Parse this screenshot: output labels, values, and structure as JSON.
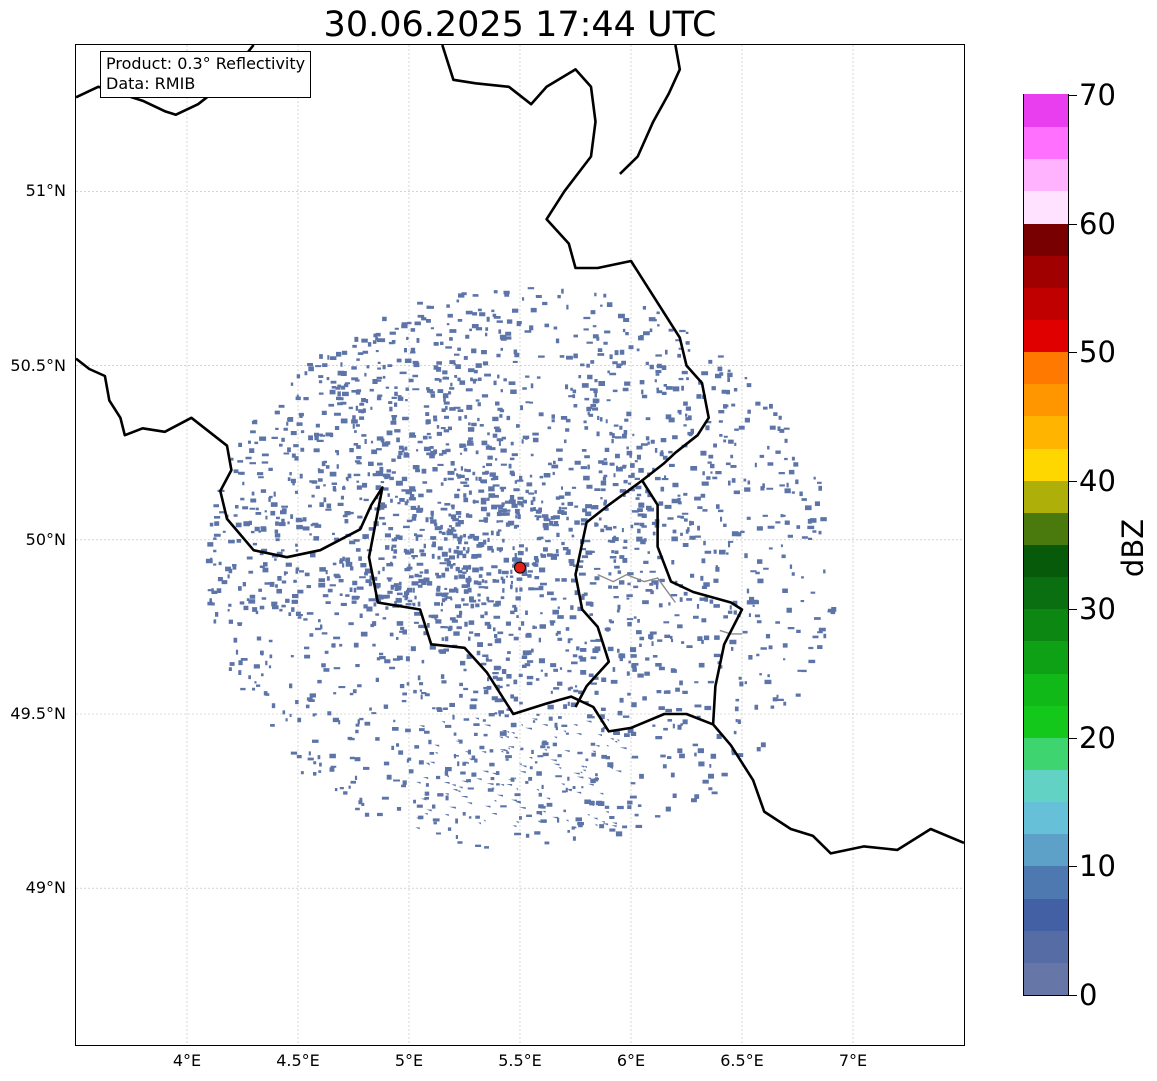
{
  "title": "30.06.2025 17:44 UTC",
  "info_box": {
    "product": "Product: 0.3° Reflectivity",
    "data": "Data: RMIB"
  },
  "map": {
    "lon_range": [
      3.5,
      7.5
    ],
    "lat_range": [
      48.55,
      51.42
    ],
    "lat_ticks": [
      {
        "value": 49.0,
        "label": "49°N"
      },
      {
        "value": 49.5,
        "label": "49.5°N"
      },
      {
        "value": 50.0,
        "label": "50°N"
      },
      {
        "value": 50.5,
        "label": "50.5°N"
      },
      {
        "value": 51.0,
        "label": "51°N"
      }
    ],
    "lon_ticks": [
      {
        "value": 4.0,
        "label": "4°E"
      },
      {
        "value": 4.5,
        "label": "4.5°E"
      },
      {
        "value": 5.0,
        "label": "5°E"
      },
      {
        "value": 5.5,
        "label": "5.5°E"
      },
      {
        "value": 6.0,
        "label": "6°E"
      },
      {
        "value": 6.5,
        "label": "6.5°E"
      },
      {
        "value": 7.0,
        "label": "7°E"
      }
    ],
    "gridlines": true,
    "radar_site": {
      "lon": 5.5,
      "lat": 49.92,
      "color": "#e8201a"
    },
    "echo_color": "#5d74a8",
    "borders": [
      [
        [
          3.5,
          50.52
        ],
        [
          3.56,
          50.49
        ],
        [
          3.63,
          50.47
        ],
        [
          3.65,
          50.4
        ],
        [
          3.7,
          50.35
        ],
        [
          3.72,
          50.3
        ],
        [
          3.8,
          50.32
        ],
        [
          3.9,
          50.31
        ],
        [
          4.02,
          50.35
        ],
        [
          4.12,
          50.3
        ],
        [
          4.18,
          50.27
        ],
        [
          4.2,
          50.2
        ],
        [
          4.15,
          50.14
        ],
        [
          4.18,
          50.06
        ],
        [
          4.3,
          49.97
        ],
        [
          4.45,
          49.95
        ],
        [
          4.6,
          49.97
        ],
        [
          4.78,
          50.03
        ],
        [
          4.83,
          50.1
        ],
        [
          4.88,
          50.15
        ],
        [
          4.85,
          50.05
        ],
        [
          4.82,
          49.95
        ],
        [
          4.86,
          49.82
        ],
        [
          5.05,
          49.8
        ],
        [
          5.1,
          49.7
        ],
        [
          5.25,
          49.69
        ],
        [
          5.35,
          49.62
        ],
        [
          5.47,
          49.5
        ],
        [
          5.62,
          49.53
        ],
        [
          5.73,
          49.55
        ],
        [
          5.83,
          49.52
        ],
        [
          5.9,
          49.45
        ],
        [
          6.0,
          49.46
        ],
        [
          6.15,
          49.5
        ],
        [
          6.25,
          49.5
        ],
        [
          6.37,
          49.47
        ],
        [
          6.45,
          49.41
        ],
        [
          6.55,
          49.31
        ],
        [
          6.6,
          49.22
        ],
        [
          6.72,
          49.17
        ],
        [
          6.82,
          49.15
        ],
        [
          6.9,
          49.1
        ],
        [
          7.05,
          49.12
        ],
        [
          7.2,
          49.11
        ],
        [
          7.35,
          49.17
        ],
        [
          7.5,
          49.13
        ]
      ],
      [
        [
          5.75,
          49.52
        ],
        [
          5.8,
          49.58
        ],
        [
          5.9,
          49.65
        ],
        [
          5.85,
          49.75
        ],
        [
          5.78,
          49.8
        ],
        [
          5.75,
          49.9
        ],
        [
          5.8,
          50.05
        ],
        [
          5.9,
          50.1
        ],
        [
          6.05,
          50.17
        ],
        [
          6.12,
          50.1
        ],
        [
          6.12,
          49.98
        ],
        [
          6.18,
          49.88
        ],
        [
          6.28,
          49.85
        ],
        [
          6.45,
          49.82
        ],
        [
          6.5,
          49.8
        ],
        [
          6.42,
          49.7
        ],
        [
          6.38,
          49.58
        ],
        [
          6.37,
          49.47
        ]
      ],
      [
        [
          6.05,
          50.17
        ],
        [
          6.15,
          50.22
        ],
        [
          6.2,
          50.25
        ],
        [
          6.3,
          50.3
        ],
        [
          6.35,
          50.35
        ],
        [
          6.32,
          50.45
        ],
        [
          6.25,
          50.5
        ],
        [
          6.22,
          50.58
        ],
        [
          6.15,
          50.65
        ],
        [
          6.08,
          50.72
        ],
        [
          6.0,
          50.8
        ],
        [
          5.85,
          50.78
        ],
        [
          5.75,
          50.78
        ],
        [
          5.72,
          50.85
        ],
        [
          5.62,
          50.92
        ],
        [
          5.7,
          51.0
        ],
        [
          5.82,
          51.1
        ],
        [
          5.84,
          51.2
        ],
        [
          5.82,
          51.3
        ],
        [
          5.75,
          51.35
        ],
        [
          5.62,
          51.3
        ],
        [
          5.55,
          51.25
        ],
        [
          5.45,
          51.3
        ],
        [
          5.3,
          51.31
        ],
        [
          5.2,
          51.32
        ],
        [
          5.15,
          51.42
        ]
      ],
      [
        [
          5.95,
          51.05
        ],
        [
          6.03,
          51.1
        ],
        [
          6.1,
          51.2
        ],
        [
          6.17,
          51.28
        ],
        [
          6.22,
          51.35
        ],
        [
          6.2,
          51.42
        ]
      ],
      [
        [
          3.5,
          51.27
        ],
        [
          3.6,
          51.3
        ],
        [
          3.8,
          51.26
        ],
        [
          3.9,
          51.23
        ],
        [
          3.95,
          51.22
        ],
        [
          4.05,
          51.25
        ],
        [
          4.15,
          51.3
        ],
        [
          4.25,
          51.38
        ],
        [
          4.3,
          51.42
        ]
      ]
    ],
    "rivers": [
      [
        [
          5.85,
          49.9
        ],
        [
          5.92,
          49.88
        ],
        [
          5.98,
          49.9
        ],
        [
          6.06,
          49.88
        ],
        [
          6.12,
          49.89
        ],
        [
          6.2,
          49.82
        ]
      ],
      [
        [
          6.4,
          49.74
        ],
        [
          6.45,
          49.73
        ],
        [
          6.5,
          49.73
        ]
      ]
    ]
  },
  "colorbar": {
    "label": "dBZ",
    "min": 0,
    "max": 70,
    "step": 2.5,
    "ticks": [
      "0",
      "10",
      "20",
      "30",
      "40",
      "50",
      "60",
      "70"
    ],
    "colors": [
      "#6677a7",
      "#566ca5",
      "#4460a4",
      "#4d79b0",
      "#5da0c8",
      "#66c0d8",
      "#61d2c4",
      "#3ed46f",
      "#14c81b",
      "#10b818",
      "#0ea015",
      "#0c8712",
      "#0a6f10",
      "#065a0a",
      "#4a7a0e",
      "#afaf0a",
      "#ffd700",
      "#ffb400",
      "#ff9600",
      "#ff7800",
      "#e00000",
      "#c00000",
      "#a00000",
      "#780000",
      "#ffe2ff",
      "#ffb3ff",
      "#ff70ff",
      "#e83ef0"
    ]
  }
}
